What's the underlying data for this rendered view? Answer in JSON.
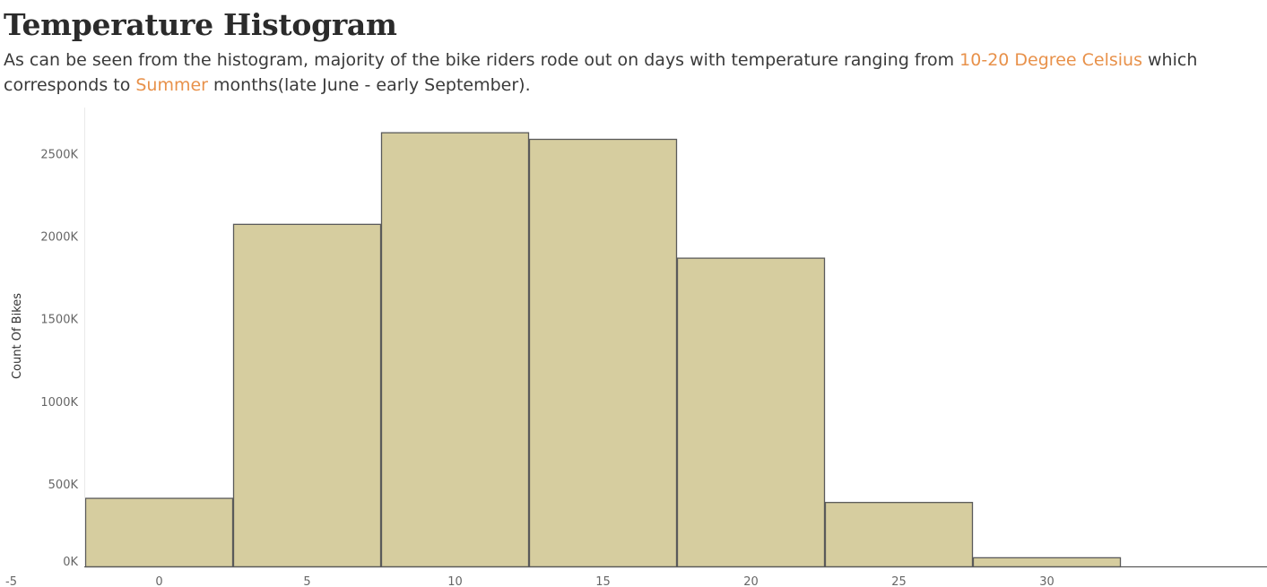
{
  "header": {
    "title": "Temperature Histogram",
    "subtitle_parts": [
      "As can be seen from the histogram, majority of the bike riders rode out on days with temperature ranging from ",
      "10-20 Degree Celsius",
      " which corresponds to ",
      "Summer",
      " months(late June - early September)."
    ],
    "highlight_color": "#e8914a"
  },
  "chart_data": {
    "type": "bar",
    "title": "Temperature Histogram",
    "xlabel": "",
    "ylabel": "Count Of Bikes",
    "categories": [
      "-5",
      "0",
      "5",
      "10",
      "15",
      "20",
      "25",
      "30"
    ],
    "values": [
      0,
      415,
      2075,
      2630,
      2590,
      1870,
      390,
      55
    ],
    "unit": "thousands",
    "ylim": [
      0,
      2780
    ],
    "yticks": [
      0,
      500,
      1000,
      1500,
      2000,
      2500
    ],
    "ytick_labels": [
      "0K",
      "500K",
      "1000K",
      "1500K",
      "2000K",
      "2500K"
    ],
    "bar_color": "#d6cd9f",
    "bar_stroke": "#5a5a5a",
    "grid": false,
    "legend": "none"
  }
}
